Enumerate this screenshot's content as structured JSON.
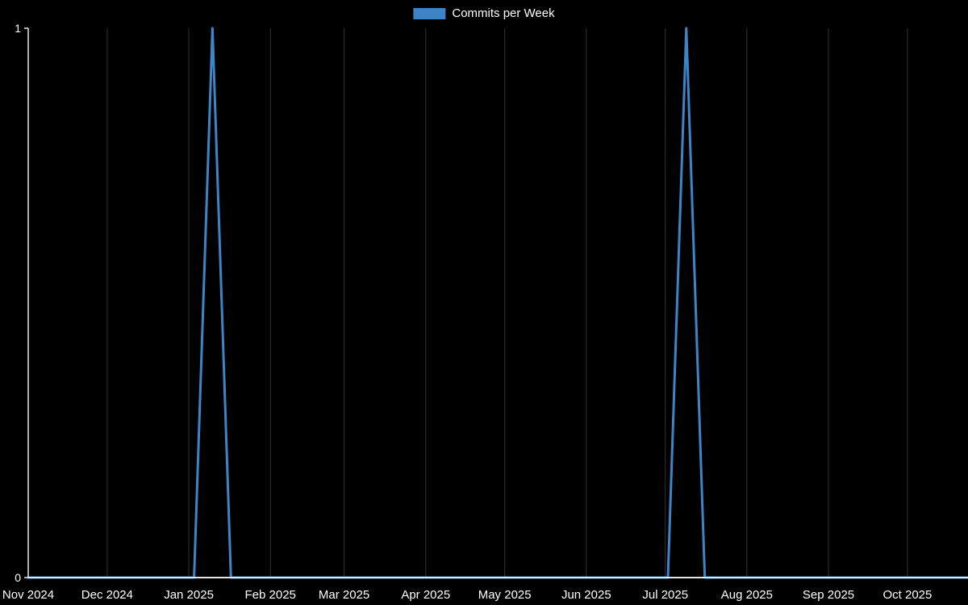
{
  "legend": {
    "label": "Commits per Week"
  },
  "axes": {
    "y_tick_top": "1",
    "y_tick_bottom": "0"
  },
  "chart_data": {
    "type": "line",
    "title": "Commits per Week",
    "legend_position": "top",
    "background": "#000000",
    "grid_color": "#333333",
    "axis_color": "#e6e6e6",
    "text_color": "#ffffff",
    "grid": true,
    "ylim": [
      0,
      1
    ],
    "y_ticks": [
      0,
      1
    ],
    "x_domain": [
      "2024-11-01",
      "2025-10-24"
    ],
    "x_ticks": [
      {
        "label": "Nov 2024",
        "date": "2024-11-01"
      },
      {
        "label": "Dec 2024",
        "date": "2024-12-01"
      },
      {
        "label": "Jan 2025",
        "date": "2025-01-01"
      },
      {
        "label": "Feb 2025",
        "date": "2025-02-01"
      },
      {
        "label": "Mar 2025",
        "date": "2025-03-01"
      },
      {
        "label": "Apr 2025",
        "date": "2025-04-01"
      },
      {
        "label": "May 2025",
        "date": "2025-05-01"
      },
      {
        "label": "Jun 2025",
        "date": "2025-06-01"
      },
      {
        "label": "Jul 2025",
        "date": "2025-07-01"
      },
      {
        "label": "Aug 2025",
        "date": "2025-08-01"
      },
      {
        "label": "Sep 2025",
        "date": "2025-09-01"
      },
      {
        "label": "Oct 2025",
        "date": "2025-10-01"
      }
    ],
    "series": [
      {
        "name": "Commits per Week",
        "color": "#3d85c8",
        "points": [
          {
            "date": "2024-11-01",
            "value": 0
          },
          {
            "date": "2025-01-03",
            "value": 0
          },
          {
            "date": "2025-01-10",
            "value": 1
          },
          {
            "date": "2025-01-17",
            "value": 0
          },
          {
            "date": "2025-07-02",
            "value": 0
          },
          {
            "date": "2025-07-09",
            "value": 1
          },
          {
            "date": "2025-07-16",
            "value": 0
          },
          {
            "date": "2025-10-24",
            "value": 0
          }
        ]
      }
    ]
  }
}
